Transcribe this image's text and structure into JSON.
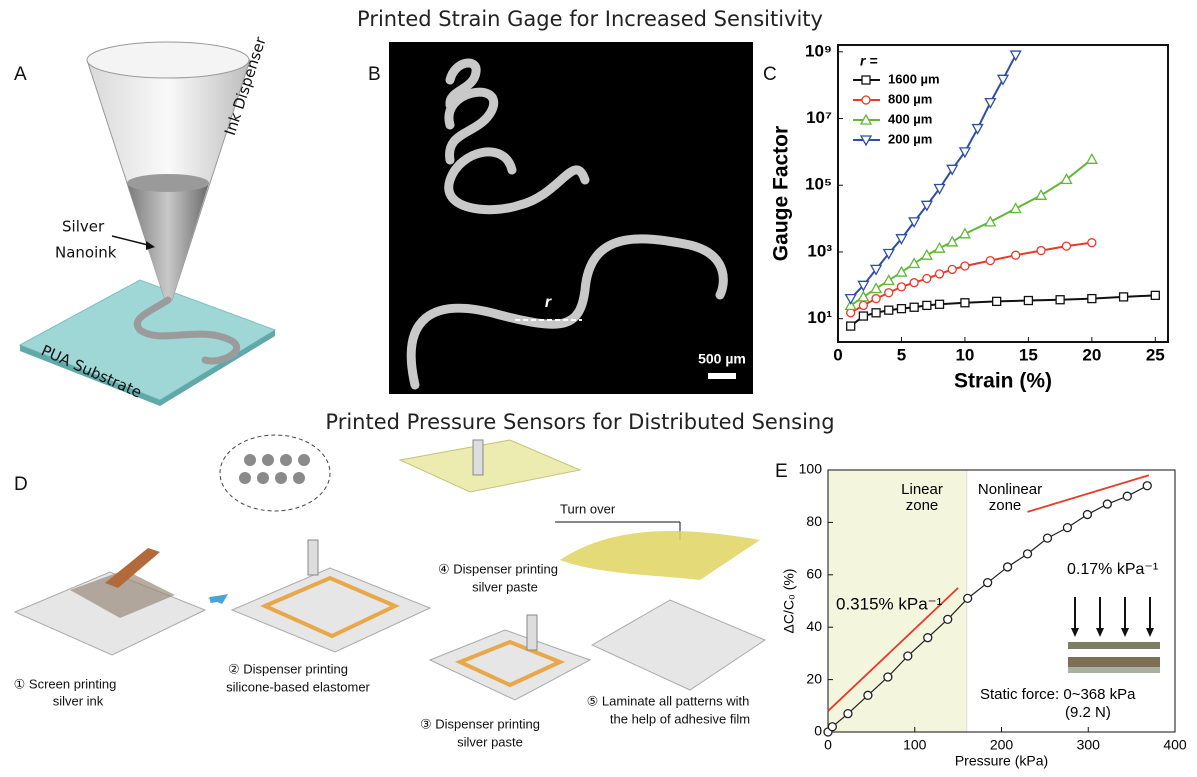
{
  "figure": {
    "title_top": "Printed Strain Gage for Increased Sensitivity",
    "title_bottom": "Printed Pressure Sensors for Distributed Sensing",
    "panel_a": {
      "label": "A",
      "ink_dispenser": "Ink Dispenser",
      "nanoink": [
        "Silver",
        "Nanoink"
      ],
      "substrate": "PUA Substrate"
    },
    "panel_b": {
      "label": "B",
      "r": "r",
      "scale": "500 µm"
    },
    "panel_c": {
      "label": "C"
    },
    "panel_d": {
      "label": "D",
      "turn_over": "Turn over",
      "step1": [
        "① Screen printing",
        "silver ink"
      ],
      "step2": [
        "② Dispenser printing",
        "silicone-based elastomer"
      ],
      "step3": [
        "③ Dispenser printing",
        "silver paste"
      ],
      "step4": [
        "④ Dispenser printing",
        "silver paste"
      ],
      "step5": [
        "⑤ Laminate all patterns with",
        "the help of adhesive film"
      ]
    },
    "panel_e": {
      "label": "E"
    }
  },
  "chart_data": [
    {
      "type": "line",
      "x_label": "Strain (%)",
      "y_label": "Gauge Factor",
      "legend_title": "r =",
      "log_y": true,
      "xlim": [
        0,
        26
      ],
      "xticks": [
        0,
        5,
        10,
        15,
        20,
        25
      ],
      "ylim": [
        2,
        1600000000
      ],
      "yticks": [
        {
          "value": 10,
          "label": "10¹"
        },
        {
          "value": 1000,
          "label": "10³"
        },
        {
          "value": 100000,
          "label": "10⁵"
        },
        {
          "value": 10000000,
          "label": "10⁷"
        },
        {
          "value": 1000000000,
          "label": "10⁹"
        }
      ],
      "series": [
        {
          "name": "1600 µm",
          "color": "#111111",
          "marker": "square",
          "x": [
            1,
            2,
            3,
            4,
            5,
            6,
            7,
            8,
            10,
            12.5,
            15,
            17.5,
            20,
            22.5,
            25
          ],
          "values": [
            6,
            12,
            15,
            18,
            20,
            22,
            25,
            27,
            30,
            33,
            35,
            37,
            40,
            45,
            50
          ]
        },
        {
          "name": "800 µm",
          "color": "#e8392a",
          "marker": "circle",
          "x": [
            1,
            2,
            3,
            4,
            5,
            6,
            7,
            8,
            9,
            10,
            12,
            14,
            16,
            18,
            20
          ],
          "values": [
            15,
            25,
            40,
            60,
            90,
            120,
            160,
            220,
            300,
            380,
            550,
            800,
            1100,
            1500,
            1900
          ]
        },
        {
          "name": "400 µm",
          "color": "#62b63a",
          "marker": "triangle",
          "x": [
            1,
            2,
            3,
            4,
            5,
            6,
            7,
            8,
            9,
            10,
            12,
            14,
            16,
            18,
            20
          ],
          "values": [
            25,
            45,
            80,
            140,
            250,
            450,
            800,
            1300,
            2000,
            3500,
            8000,
            20000,
            50000,
            150000,
            600000
          ]
        },
        {
          "name": "200 µm",
          "color": "#2e4fa3",
          "marker": "triangle-down",
          "x": [
            1,
            2,
            3,
            4,
            5,
            6,
            7,
            8,
            9,
            10,
            11,
            12,
            13,
            14
          ],
          "values": [
            40,
            100,
            300,
            900,
            2500,
            8000,
            25000,
            80000,
            300000,
            1000000,
            5000000,
            30000000,
            150000000,
            800000000
          ]
        }
      ]
    },
    {
      "type": "line",
      "x_label": "Pressure (kPa)",
      "y_label": "ΔC/C₀ (%)",
      "xlim": [
        0,
        400
      ],
      "xticks": [
        0,
        100,
        200,
        300,
        400
      ],
      "ylim": [
        0,
        100
      ],
      "yticks": [
        0,
        20,
        40,
        60,
        80,
        100
      ],
      "zone_boundary": 160,
      "zone_labels": [
        [
          "Linear",
          "zone"
        ],
        [
          "Nonlinear",
          "zone"
        ]
      ],
      "slope_labels": [
        "0.315% kPa⁻¹",
        "0.17% kPa⁻¹"
      ],
      "force_label": [
        "Static force: 0~368 kPa",
        "(9.2 N)"
      ],
      "fit_color": "#e8392a",
      "fits": [
        {
          "x": [
            0,
            150
          ],
          "values": [
            8,
            55
          ]
        },
        {
          "x": [
            230,
            370
          ],
          "values": [
            84,
            98
          ]
        }
      ],
      "series": [
        {
          "color": "#222222",
          "marker": "circle",
          "x": [
            0,
            5,
            23,
            46,
            69,
            92,
            115,
            138,
            161,
            184,
            207,
            230,
            253,
            276,
            299,
            322,
            345,
            368
          ],
          "values": [
            0,
            2,
            7,
            14,
            21,
            29,
            36,
            43,
            51,
            57,
            63,
            68,
            74,
            78,
            83,
            87,
            90,
            94
          ]
        }
      ]
    }
  ]
}
